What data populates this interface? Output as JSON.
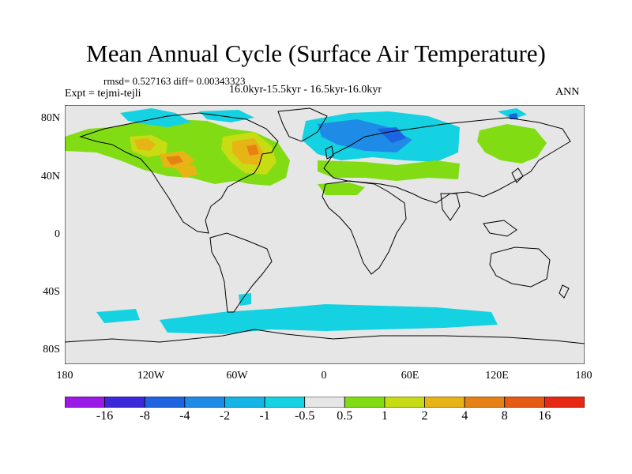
{
  "title": "Mean Annual Cycle (Surface Air Temperature)",
  "stats": "rmsd= 0.527163 diff= 0.00343323",
  "experiment": "Expt = tejmi-tejli",
  "period": "16.0kyr-15.5kyr - 16.5kyr-16.0kyr",
  "season": "ANN",
  "lat_ticks": [
    "80N",
    "40N",
    "0",
    "40S",
    "80S"
  ],
  "lon_ticks": [
    "180",
    "120W",
    "60W",
    "0",
    "60E",
    "120E",
    "180"
  ],
  "colorbar": {
    "labels": [
      "-16",
      "-8",
      "-4",
      "-2",
      "-1",
      "-0.5",
      "0.5",
      "1",
      "2",
      "4",
      "8",
      "16"
    ],
    "colors": [
      "#9a19e6",
      "#3b28d8",
      "#1e64e0",
      "#1e8ce6",
      "#14b4e6",
      "#14d2e1",
      "#e6e6e6",
      "#82dc14",
      "#c8dc14",
      "#e6b414",
      "#e68214",
      "#e65a14",
      "#e62814"
    ]
  },
  "map_colors": {
    "ocean": "#e6e6e6",
    "coast": "#000000"
  }
}
